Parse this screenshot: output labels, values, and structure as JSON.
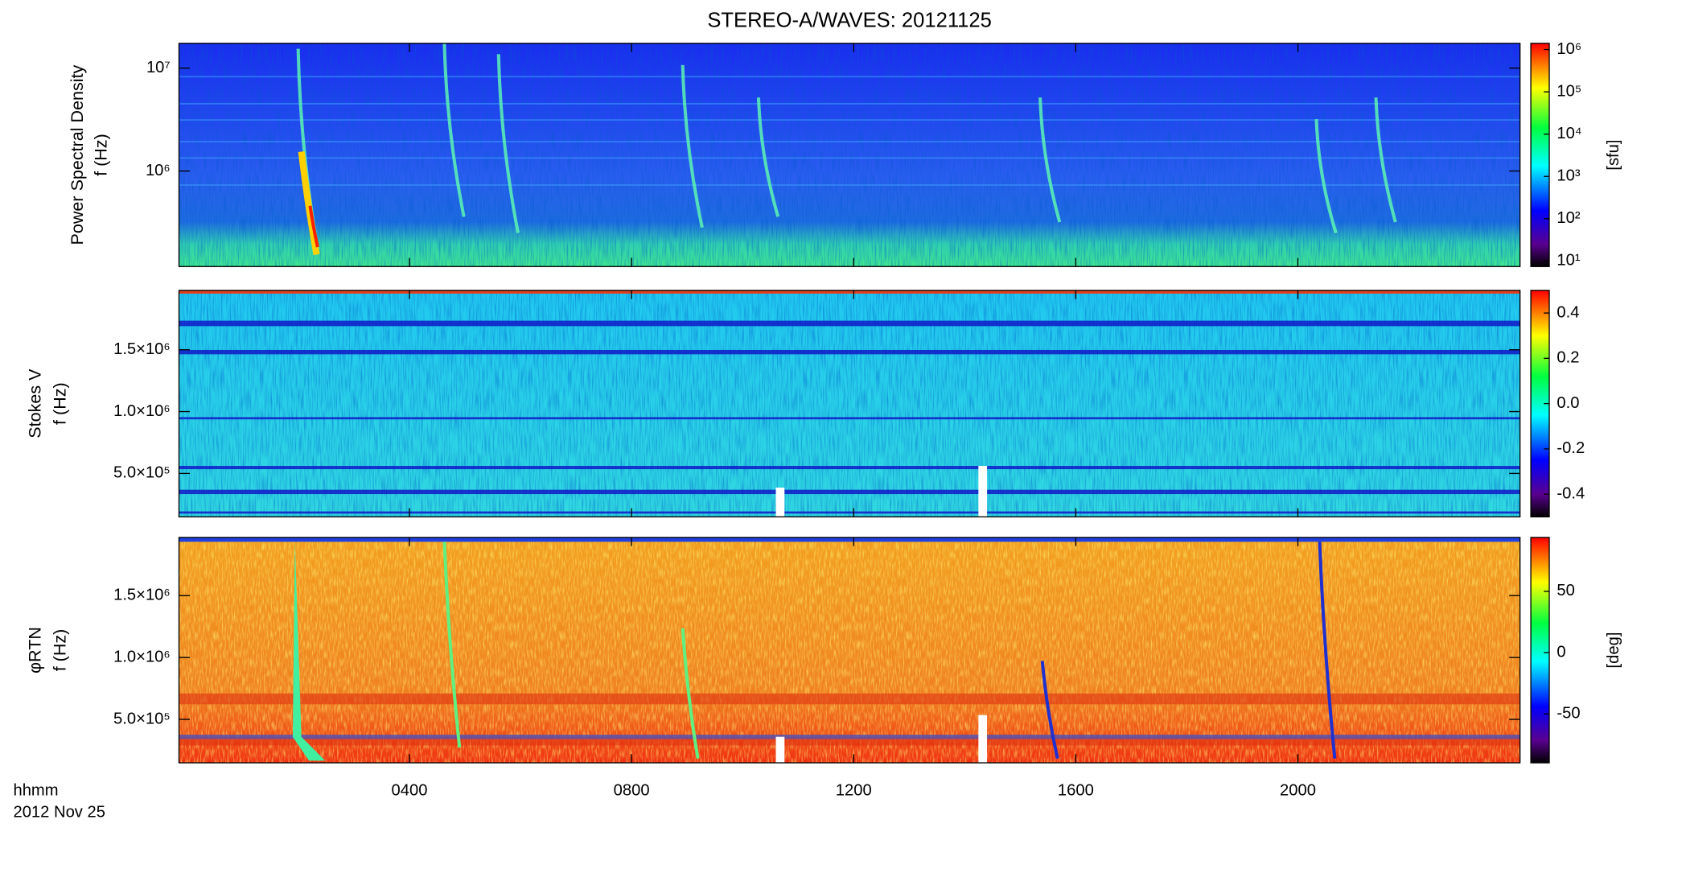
{
  "chart_data": [
    {
      "type": "spectrogram",
      "title": "STEREO-A/WAVES: 20121125",
      "ylabel": [
        "Power Spectral Density",
        "f (Hz)"
      ],
      "ylog": true,
      "ylim": [
        118000,
        17400000
      ],
      "yticks": [
        {
          "value": 1000000,
          "label": "10⁶"
        },
        {
          "value": 10000000,
          "label": "10⁷"
        }
      ],
      "xlim": [
        -0.15,
        24
      ],
      "xticks": [
        4,
        8,
        12,
        16,
        20
      ],
      "colorbar": {
        "log": true,
        "clim": [
          7.4,
          1400000
        ],
        "label": "[sfu]",
        "ticks": [
          {
            "value": 10,
            "label": "10¹"
          },
          {
            "value": 100,
            "label": "10²"
          },
          {
            "value": 1000,
            "label": "10³"
          },
          {
            "value": 10000,
            "label": "10⁴"
          },
          {
            "value": 100000,
            "label": "10⁵"
          },
          {
            "value": 1000000,
            "label": "10⁶"
          }
        ]
      }
    },
    {
      "type": "spectrogram",
      "ylabel": [
        "Stokes V",
        "f (Hz)"
      ],
      "ylog": false,
      "ylim": [
        149000,
        1980000
      ],
      "yticks": [
        {
          "value": 500000,
          "label": "5.0×10⁵"
        },
        {
          "value": 1000000,
          "label": "1.0×10⁶"
        },
        {
          "value": 1500000,
          "label": "1.5×10⁶"
        }
      ],
      "xlim": [
        -0.15,
        24
      ],
      "xticks": [
        4,
        8,
        12,
        16,
        20
      ],
      "colorbar": {
        "log": false,
        "clim": [
          -0.5,
          0.5
        ],
        "ticks": [
          {
            "value": -0.4,
            "label": "-0.4"
          },
          {
            "value": -0.2,
            "label": "-0.2"
          },
          {
            "value": 0,
            "label": "0.0"
          },
          0.2,
          0.4
        ]
      }
    },
    {
      "type": "spectrogram",
      "ylabel": [
        "φRTN",
        "f (Hz)"
      ],
      "ylog": false,
      "ylim": [
        149000,
        1970000
      ],
      "yticks": [
        {
          "value": 500000,
          "label": "5.0×10⁵"
        },
        {
          "value": 1000000,
          "label": "1.0×10⁶"
        },
        {
          "value": 1500000,
          "label": "1.5×10⁶"
        }
      ],
      "xlim": [
        -0.15,
        24
      ],
      "xticks": [
        {
          "value": 4,
          "label": "0400"
        },
        {
          "value": 8,
          "label": "0800"
        },
        {
          "value": 12,
          "label": "1200"
        },
        {
          "value": 16,
          "label": "1600"
        },
        {
          "value": 20,
          "label": "2000"
        }
      ],
      "xlabel": "hhmm",
      "date": "2012 Nov 25",
      "colorbar": {
        "log": false,
        "clim": [
          -90,
          94
        ],
        "label": "[deg]",
        "ticks": [
          -50,
          0,
          50
        ]
      }
    }
  ]
}
